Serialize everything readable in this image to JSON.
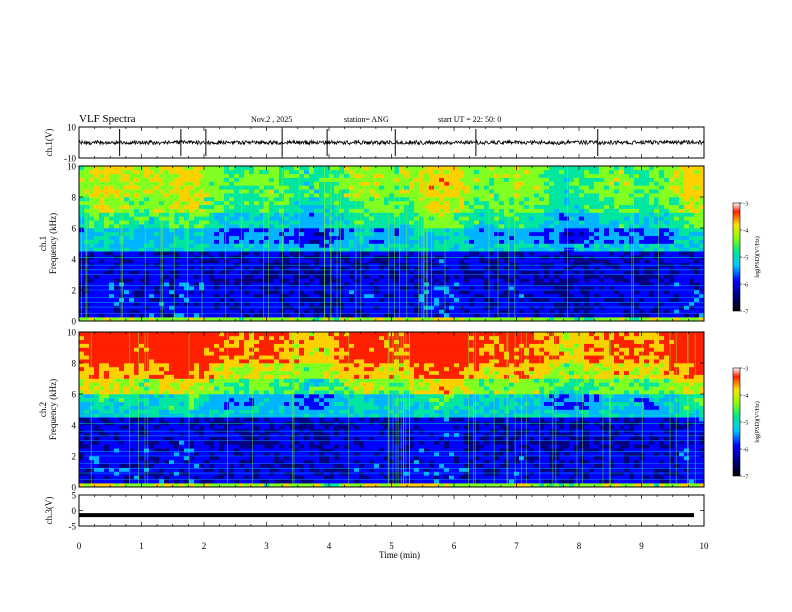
{
  "header": {
    "title": "VLF Spectra",
    "date": "Nov.2 , 2025",
    "station": "station= ANG",
    "start_ut": "start UT = 22: 50: 0"
  },
  "chart_data": [
    {
      "type": "line",
      "panel": "ch1-waveform",
      "ylabel": "ch.1(V)",
      "ylim": [
        -10,
        10
      ],
      "yticks": [
        "10",
        "-10"
      ],
      "baseline": 0
    },
    {
      "type": "heatmap",
      "panel": "ch1-spectrogram",
      "ylabel_line1": "ch.1",
      "ylabel_line2": "Frequency (kHz)",
      "ylim": [
        0,
        10
      ],
      "yticks": [
        "0",
        "2",
        "4",
        "6",
        "8",
        "10"
      ],
      "colorbar": {
        "label": "log(PSD)(V²/Hz)",
        "range": [
          -7,
          -3
        ],
        "ticks": [
          "-3",
          "-4",
          "-5",
          "-6",
          "-7"
        ]
      }
    },
    {
      "type": "heatmap",
      "panel": "ch2-spectrogram",
      "ylabel_line1": "ch.2",
      "ylabel_line2": "Frequency (kHz)",
      "ylim": [
        0,
        10
      ],
      "yticks": [
        "0",
        "2",
        "4",
        "6",
        "8",
        "10"
      ],
      "colorbar": {
        "label": "log(PSD)(V²/Hz)",
        "range": [
          -7,
          -3
        ],
        "ticks": [
          "-3",
          "-4",
          "-5",
          "-6",
          "-7"
        ]
      }
    },
    {
      "type": "line",
      "panel": "ch3-waveform",
      "ylabel": "ch.3(V)",
      "ylim": [
        -5,
        5
      ],
      "yticks": [
        "5",
        "0",
        "-5"
      ],
      "baseline": -1.5
    }
  ],
  "xaxis": {
    "label": "Time (min)",
    "range": [
      0,
      10
    ],
    "ticks": [
      "0",
      "1",
      "2",
      "3",
      "4",
      "5",
      "6",
      "7",
      "8",
      "9",
      "10"
    ]
  },
  "colors": {
    "ch1_spectrum": [
      "#000080",
      "#0000ff",
      "#00b4ff",
      "#00e6a0",
      "#80ff20",
      "#ffd000",
      "#ff2000"
    ],
    "ch2_spectrum": [
      "#000080",
      "#0000ff",
      "#00b4ff",
      "#00e6a0",
      "#80ff20",
      "#ffd000",
      "#ff2000"
    ]
  }
}
